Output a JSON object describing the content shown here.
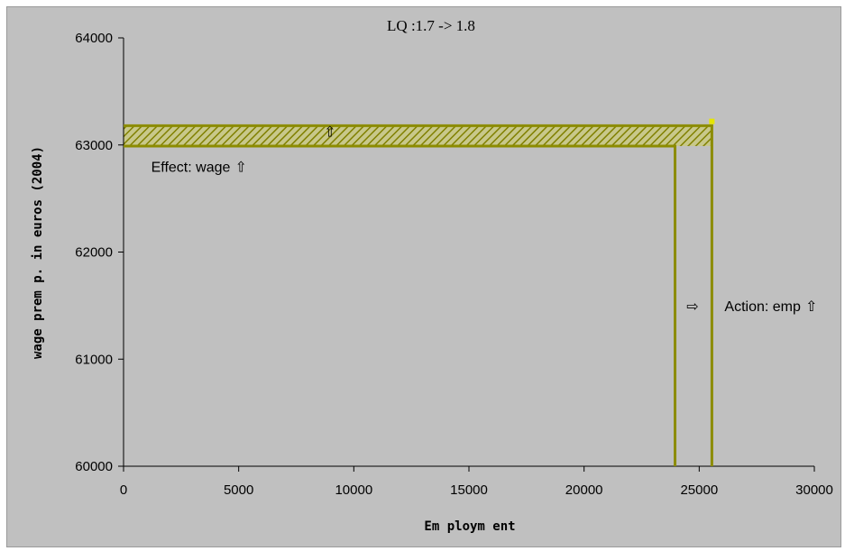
{
  "chart_data": {
    "type": "line",
    "title": "LQ :1.7 -> 1.8",
    "xlabel": "Em ploym ent",
    "ylabel": "wage prem p. in euros (2004)",
    "xlim": [
      0,
      30000
    ],
    "ylim": [
      60000,
      64000
    ],
    "x_ticks": [
      0,
      5000,
      10000,
      15000,
      20000,
      25000,
      30000
    ],
    "y_ticks": [
      60000,
      61000,
      62000,
      63000,
      64000
    ],
    "x_tick_labels": [
      "0",
      "5000",
      "10000",
      "15000",
      "20000",
      "25000",
      "30000"
    ],
    "y_tick_labels": [
      "60000",
      "61000",
      "62000",
      "63000",
      "64000"
    ],
    "grid": false,
    "legend": "none",
    "colors": {
      "line": "#8c8c00",
      "hatch": "#808000",
      "hatch_bg": "#c8c88a",
      "marker": "#e6e600"
    },
    "series": [
      {
        "points": [
          [
            0,
            62990
          ],
          [
            23950,
            62990
          ],
          [
            23950,
            60000
          ]
        ]
      },
      {
        "points": [
          [
            0,
            63180
          ],
          [
            25550,
            63180
          ],
          [
            25550,
            60000
          ]
        ]
      }
    ],
    "marker_point": [
      25550,
      63220
    ],
    "hatched_band": {
      "x": [
        0,
        25550
      ],
      "y": [
        62990,
        63180
      ]
    },
    "annotations": [
      {
        "text": "Effect: wage",
        "arrow": "⇧",
        "x": 1200,
        "y": 62750
      },
      {
        "text": "Action: emp",
        "arrow": "⇧",
        "x": 26100,
        "y": 61450
      },
      {
        "text": "⇨",
        "x": 24450,
        "y": 61450
      },
      {
        "text": "⇧",
        "x": 8700,
        "y": 63080
      }
    ]
  }
}
